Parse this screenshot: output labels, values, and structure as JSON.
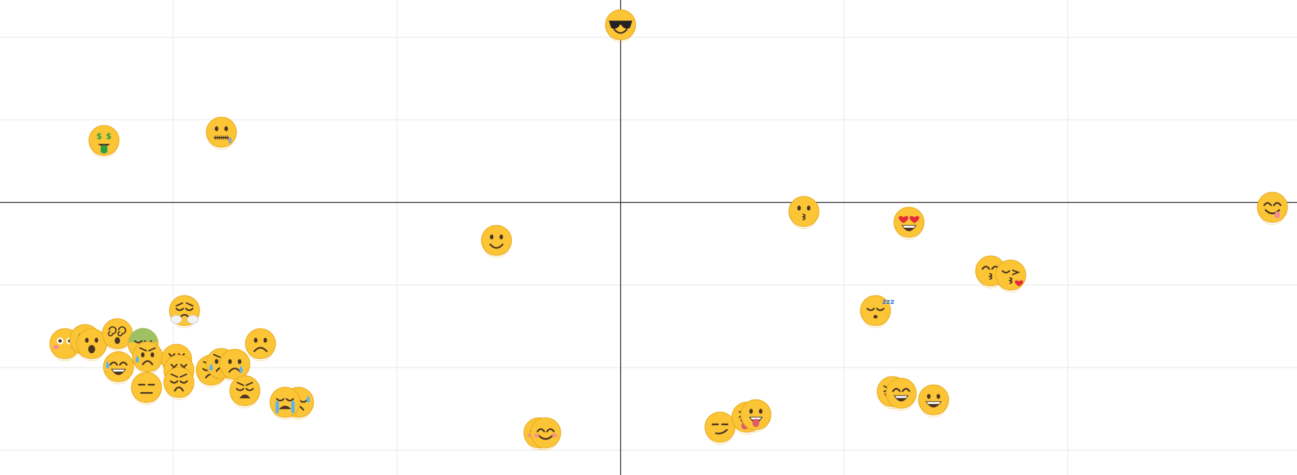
{
  "colors": {
    "background": "#ffffff",
    "grid": "#e6e6e6",
    "axis": "#333333",
    "emoji_face": "#fbc536",
    "emoji_outline": "#e9a81f",
    "emoji_feature": "#4a3424",
    "blush": "#f4889c",
    "tear": "#5bb4ef",
    "heart": "#e8283c",
    "money": "#2f9e44"
  },
  "chart_data": {
    "type": "scatter",
    "title": "",
    "xlabel": "",
    "ylabel": "",
    "xlim": [
      -5.55,
      6.05
    ],
    "ylim": [
      -3.3,
      2.45
    ],
    "x_gridlines": [
      -4,
      -2,
      2,
      4
    ],
    "y_gridlines": [
      -3,
      -2,
      -1,
      1,
      2
    ],
    "grid": true,
    "axes_through_origin": true,
    "points": [
      {
        "icon": "smiling-face-with-sunglasses",
        "x": 0.0,
        "y": 2.15
      },
      {
        "icon": "money-mouth-face",
        "x": -4.62,
        "y": 0.75
      },
      {
        "icon": "zipper-mouth-face",
        "x": -3.57,
        "y": 0.85
      },
      {
        "icon": "slightly-smiling-face",
        "x": -1.11,
        "y": -0.46
      },
      {
        "icon": "kissing-face",
        "x": 1.64,
        "y": -0.11
      },
      {
        "icon": "smiling-face-with-heart-eyes",
        "x": 2.58,
        "y": -0.24
      },
      {
        "icon": "face-savoring-food",
        "x": 5.83,
        "y": -0.06
      },
      {
        "icon": "kissing-face-with-smiling-eyes",
        "x": 3.31,
        "y": -0.83
      },
      {
        "icon": "face-blowing-a-kiss",
        "x": 3.49,
        "y": -0.88
      },
      {
        "icon": "sleeping-face",
        "x": 2.28,
        "y": -1.31
      },
      {
        "icon": "face-with-steam-from-nose",
        "x": -3.9,
        "y": -1.31
      },
      {
        "icon": "frowning-face",
        "x": -3.22,
        "y": -1.71
      },
      {
        "icon": "flushed-face",
        "x": -4.97,
        "y": -1.71
      },
      {
        "icon": "hushed-face",
        "x": -4.79,
        "y": -1.66
      },
      {
        "icon": "astonished-face",
        "x": -4.73,
        "y": -1.71
      },
      {
        "icon": "dizzy-face",
        "x": -4.5,
        "y": -1.59
      },
      {
        "icon": "nauseated-face",
        "x": -4.27,
        "y": -1.71
      },
      {
        "icon": "anxious-face-with-sweat",
        "x": -4.23,
        "y": -1.87
      },
      {
        "icon": "persevering-face",
        "x": -3.97,
        "y": -1.9
      },
      {
        "icon": "grinning-face-with-sweat",
        "x": -4.49,
        "y": -1.99
      },
      {
        "icon": "expressionless-face",
        "x": -4.24,
        "y": -2.24
      },
      {
        "icon": "confounded-face",
        "x": -3.95,
        "y": -2.03
      },
      {
        "icon": "pensive-face",
        "x": -3.95,
        "y": -2.18
      },
      {
        "icon": "disappointed-face",
        "x": -3.66,
        "y": -2.03
      },
      {
        "icon": "disappointed-but-relieved-face",
        "x": -3.57,
        "y": -1.95
      },
      {
        "icon": "crying-face",
        "x": -3.45,
        "y": -1.96
      },
      {
        "icon": "weary-face",
        "x": -3.36,
        "y": -2.28
      },
      {
        "icon": "downcast-face-with-sweat",
        "x": -2.88,
        "y": -2.42
      },
      {
        "icon": "loudly-crying-face",
        "x": -3.0,
        "y": -2.42
      },
      {
        "icon": "smiling-face-with-smiling-eyes",
        "x": -0.73,
        "y": -2.79
      },
      {
        "icon": "smiling-face-with-smiling-eyes",
        "x": -0.67,
        "y": -2.79
      },
      {
        "icon": "smirking-face",
        "x": 0.89,
        "y": -2.72
      },
      {
        "icon": "winking-face-with-tongue",
        "x": 1.13,
        "y": -2.6
      },
      {
        "icon": "face-with-tongue",
        "x": 1.21,
        "y": -2.57
      },
      {
        "icon": "grinning-squinting-face",
        "x": 2.43,
        "y": -2.29
      },
      {
        "icon": "grinning-face-with-smiling-eyes",
        "x": 2.51,
        "y": -2.31
      },
      {
        "icon": "grinning-face-with-big-eyes",
        "x": 2.8,
        "y": -2.39
      }
    ]
  }
}
